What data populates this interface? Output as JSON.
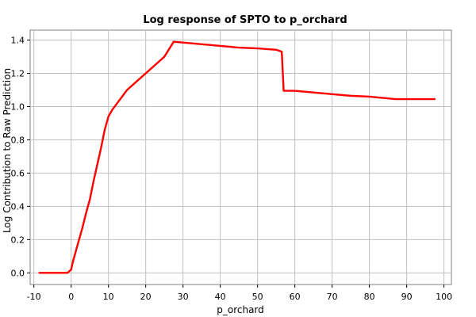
{
  "chart_data": {
    "type": "line",
    "title": "Log response of SPTO to p_orchard",
    "xlabel": "p_orchard",
    "ylabel": "Log Contribution to Raw Prediction",
    "xlim": [
      -11,
      102
    ],
    "ylim": [
      -0.07,
      1.46
    ],
    "xticks": [
      -10,
      0,
      10,
      20,
      30,
      40,
      50,
      60,
      70,
      80,
      90,
      100
    ],
    "yticks": [
      0.0,
      0.2,
      0.4,
      0.6,
      0.8,
      1.0,
      1.2,
      1.4
    ],
    "grid": true,
    "legend": "none",
    "color": "#ff0000",
    "series": [
      {
        "x": [
          -8.5,
          -1,
          0,
          0.5,
          1,
          2,
          3,
          4,
          5,
          6,
          7,
          8,
          9,
          10,
          11,
          13,
          15,
          18,
          20,
          23,
          25,
          27.5,
          30,
          35,
          40,
          45,
          50,
          55,
          56.5,
          57,
          60,
          65,
          70,
          75,
          80,
          87,
          90,
          95,
          97.5
        ],
        "y": [
          0.0,
          0.0,
          0.02,
          0.07,
          0.11,
          0.19,
          0.27,
          0.36,
          0.44,
          0.55,
          0.65,
          0.75,
          0.86,
          0.94,
          0.98,
          1.04,
          1.1,
          1.16,
          1.2,
          1.26,
          1.3,
          1.39,
          1.385,
          1.375,
          1.365,
          1.355,
          1.35,
          1.342,
          1.33,
          1.095,
          1.095,
          1.085,
          1.075,
          1.065,
          1.06,
          1.045,
          1.045,
          1.045,
          1.045
        ]
      }
    ]
  }
}
